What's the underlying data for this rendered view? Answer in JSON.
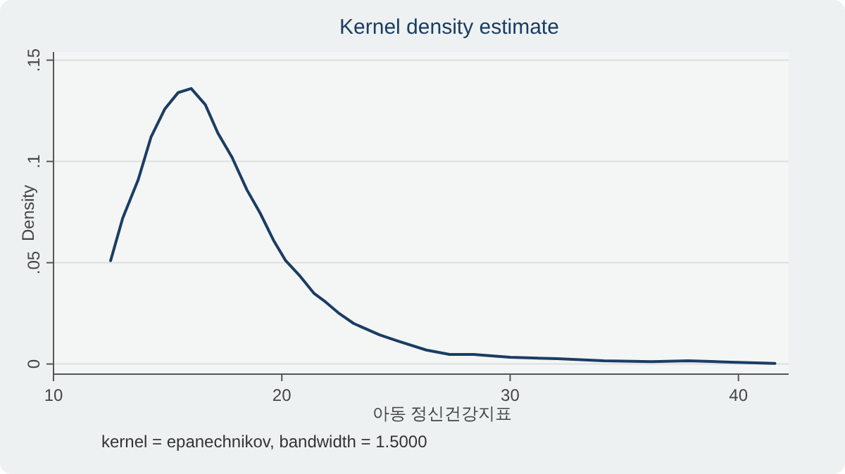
{
  "chart_data": {
    "type": "line",
    "title": "Kernel density estimate",
    "xlabel": "아동 정신건강지표",
    "ylabel": "Density",
    "annotations": [
      "kernel = epanechnikov, bandwidth = 1.5000"
    ],
    "x": [
      12.5,
      13.03,
      13.71,
      14.27,
      14.88,
      15.46,
      16.03,
      16.65,
      17.2,
      17.82,
      18.47,
      19.05,
      19.66,
      20.17,
      20.75,
      21.4,
      21.92,
      22.53,
      23.15,
      24.28,
      25.1,
      26.33,
      27.35,
      28.4,
      30.0,
      32.07,
      34.1,
      36.2,
      37.8,
      39.7,
      41.6
    ],
    "series": [
      {
        "color": "#1a3d63",
        "values": [
          0.051,
          0.072,
          0.091,
          0.112,
          0.126,
          0.134,
          0.136,
          0.128,
          0.114,
          0.102,
          0.086,
          0.0745,
          0.0606,
          0.051,
          0.044,
          0.035,
          0.0306,
          0.0248,
          0.02,
          0.0144,
          0.0113,
          0.0069,
          0.0047,
          0.0047,
          0.0033,
          0.0026,
          0.0016,
          0.0012,
          0.0016,
          0.0009,
          0.0003
        ]
      }
    ],
    "xlim": [
      10,
      42.2
    ],
    "ylim": [
      -0.005,
      0.154
    ],
    "xticks": [
      10,
      20,
      30,
      40
    ],
    "yticks": [
      0,
      {
        "value": 0.05,
        "label": ".05"
      },
      {
        "value": 0.1,
        "label": ".1"
      },
      {
        "value": 0.15,
        "label": ".15"
      }
    ],
    "grid": "y",
    "line_style": "solid",
    "marker": "none"
  }
}
